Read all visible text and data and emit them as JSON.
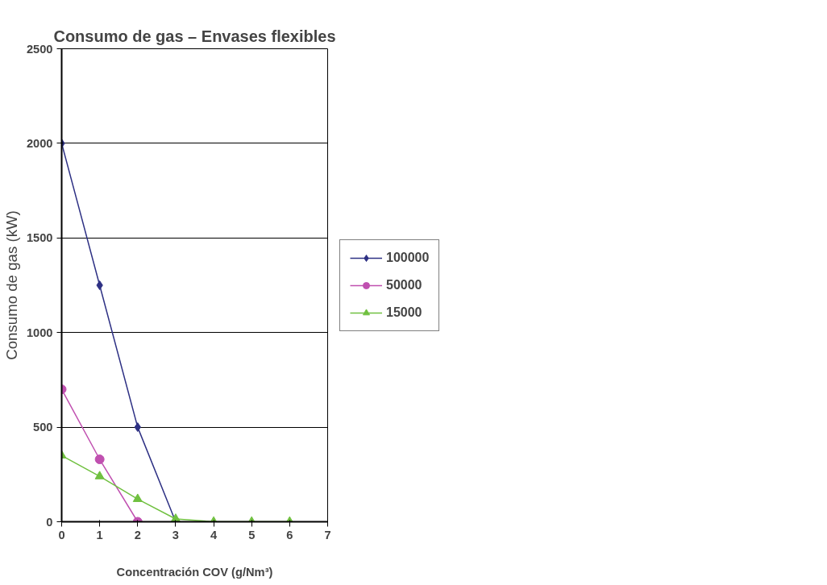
{
  "chart_data": {
    "type": "line",
    "title": "Consumo de gas – Envases flexibles",
    "xlabel": "Concentración COV (g/Nm³)",
    "ylabel": "Consumo de gas (kW)",
    "x": [
      0,
      1,
      2,
      3,
      4,
      5,
      6
    ],
    "series": [
      {
        "name": "100000",
        "color": "#2e3184",
        "marker": "diamond",
        "values": [
          2000,
          1250,
          500,
          0,
          null,
          null,
          null
        ]
      },
      {
        "name": "50000",
        "color": "#c050b0",
        "marker": "circle",
        "values": [
          700,
          330,
          0,
          null,
          null,
          null,
          null
        ]
      },
      {
        "name": "15000",
        "color": "#70c040",
        "marker": "triangle",
        "values": [
          350,
          240,
          120,
          15,
          0,
          0,
          0
        ]
      }
    ],
    "xlim": [
      0,
      7
    ],
    "xticks": [
      0,
      1,
      2,
      3,
      4,
      5,
      6,
      7
    ],
    "ylim": [
      0,
      2500
    ],
    "yticks": [
      0,
      500,
      1000,
      1500,
      2000,
      2500
    ],
    "grid": "y",
    "legend": "right"
  }
}
